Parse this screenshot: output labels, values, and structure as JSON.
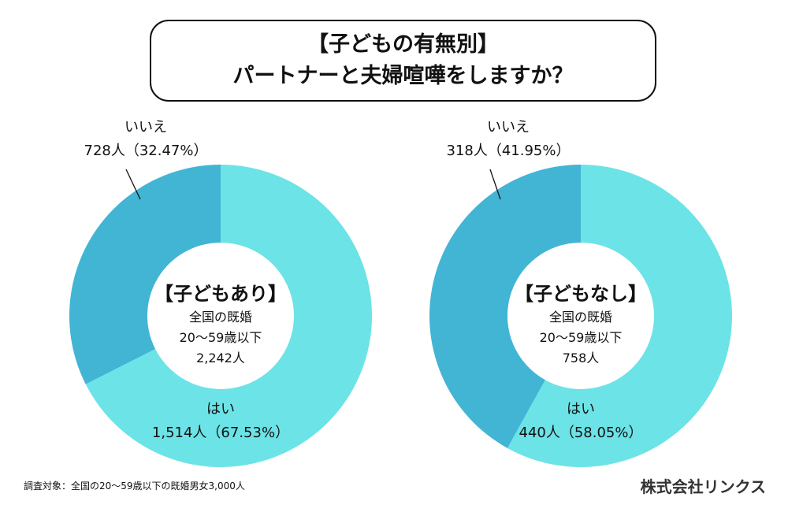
{
  "title": {
    "line1": "【子どもの有無別】",
    "line2": "パートナーと夫婦喧嘩をしますか？"
  },
  "colors": {
    "yes": "#6ce3e6",
    "no": "#42b5d4"
  },
  "chart_data": [
    {
      "type": "pie",
      "variant": "donut",
      "center_label": {
        "heading": "【子どもあり】",
        "line1": "全国の既婚",
        "line2": "20〜59歳以下",
        "line3": "2,242人"
      },
      "slices": [
        {
          "label": "はい",
          "count": 1514,
          "count_text": "1,514人（67.53%）",
          "percent": 67.53
        },
        {
          "label": "いいえ",
          "count": 728,
          "count_text": "728人（32.47%）",
          "percent": 32.47
        }
      ]
    },
    {
      "type": "pie",
      "variant": "donut",
      "center_label": {
        "heading": "【子どもなし】",
        "line1": "全国の既婚",
        "line2": "20〜59歳以下",
        "line3": "758人"
      },
      "slices": [
        {
          "label": "はい",
          "count": 440,
          "count_text": "440人（58.05%）",
          "percent": 58.05
        },
        {
          "label": "いいえ",
          "count": 318,
          "count_text": "318人（41.95%）",
          "percent": 41.95
        }
      ]
    }
  ],
  "footer": {
    "note": "調査対象：全国の20〜59歳以下の既婚男女3,000人",
    "brand": "株式会社リンクス"
  }
}
